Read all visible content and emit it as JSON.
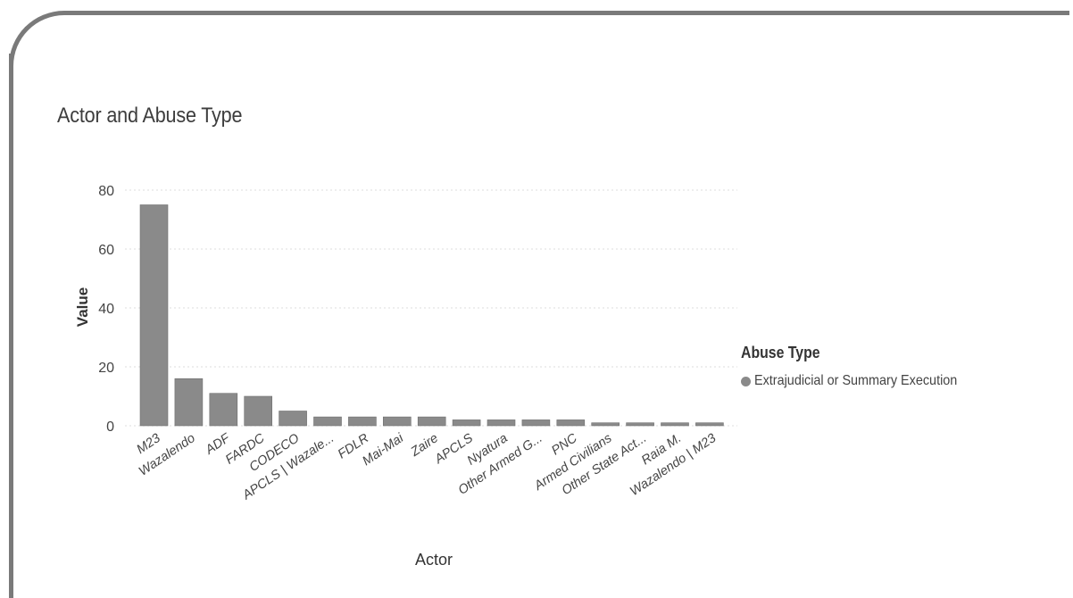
{
  "chart_data": {
    "type": "bar",
    "title": "Actor and Abuse Type",
    "xlabel": "Actor",
    "ylabel": "Value",
    "ylim": [
      0,
      80
    ],
    "yticks": [
      0,
      20,
      40,
      60,
      80
    ],
    "grid": true,
    "legend_placement": "right",
    "legend_title": "Abuse Type",
    "colors": {
      "bar": "#8a8a8a",
      "grid": "#dcdcdc"
    },
    "categories": [
      "M23",
      "Wazalendo",
      "ADF",
      "FARDC",
      "CODECO",
      "APCLS | Wazale...",
      "FDLR",
      "Mai-Mai",
      "Zaire",
      "APCLS",
      "Nyatura",
      "Other Armed G...",
      "PNC",
      "Armed Civilians",
      "Other State Act...",
      "Raia M.",
      "Wazalendo | M23"
    ],
    "series": [
      {
        "name": "Extrajudicial or Summary Execution",
        "values": [
          75,
          16,
          11,
          10,
          5,
          3,
          3,
          3,
          3,
          2,
          2,
          2,
          2,
          1,
          1,
          1,
          1
        ]
      }
    ]
  }
}
